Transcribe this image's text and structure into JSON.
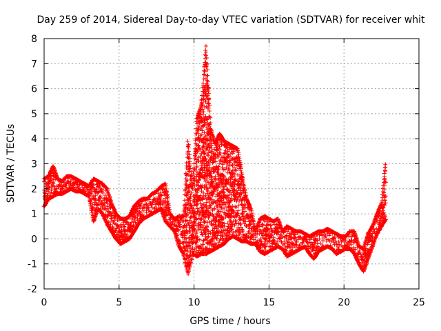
{
  "chart_data": {
    "type": "scatter",
    "title": "Day 259 of 2014, Sidereal Day-to-day VTEC variation (SDTVAR) for receiver whit",
    "xlabel": "GPS time / hours",
    "ylabel": "SDTVAR / TECUs",
    "xlim": [
      0,
      25
    ],
    "ylim": [
      -2,
      8
    ],
    "xticks": [
      0,
      5,
      10,
      15,
      20,
      25
    ],
    "yticks": [
      -2,
      -1,
      0,
      1,
      2,
      3,
      4,
      5,
      6,
      7,
      8
    ],
    "xtick_labels": [
      "0",
      "5",
      "10",
      "15",
      "20",
      "25"
    ],
    "ytick_labels": [
      "-2",
      "-1",
      "0",
      "1",
      "2",
      "3",
      "4",
      "5",
      "6",
      "7",
      "8"
    ],
    "grid": true,
    "marker": "+",
    "color": "#ff0000",
    "series": [
      {
        "name": "SDTVAR",
        "envelope": [
          [
            0.0,
            1.3,
            2.4
          ],
          [
            0.3,
            1.6,
            2.5
          ],
          [
            0.6,
            1.7,
            2.9
          ],
          [
            0.9,
            1.8,
            2.4
          ],
          [
            1.2,
            1.8,
            2.3
          ],
          [
            1.5,
            1.9,
            2.5
          ],
          [
            1.8,
            2.0,
            2.5
          ],
          [
            2.1,
            1.9,
            2.4
          ],
          [
            2.4,
            1.9,
            2.3
          ],
          [
            2.7,
            1.8,
            2.2
          ],
          [
            3.0,
            1.7,
            2.1
          ],
          [
            3.3,
            0.7,
            2.4
          ],
          [
            3.6,
            1.2,
            2.3
          ],
          [
            3.9,
            1.0,
            2.2
          ],
          [
            4.2,
            0.6,
            2.0
          ],
          [
            4.5,
            0.3,
            1.4
          ],
          [
            4.8,
            0.0,
            1.0
          ],
          [
            5.1,
            -0.2,
            0.8
          ],
          [
            5.4,
            -0.1,
            0.8
          ],
          [
            5.7,
            0.0,
            0.9
          ],
          [
            6.0,
            0.3,
            1.3
          ],
          [
            6.3,
            0.6,
            1.5
          ],
          [
            6.6,
            0.8,
            1.6
          ],
          [
            6.9,
            0.9,
            1.6
          ],
          [
            7.2,
            1.0,
            1.8
          ],
          [
            7.5,
            1.1,
            1.9
          ],
          [
            7.8,
            1.2,
            2.1
          ],
          [
            8.1,
            0.7,
            2.2
          ],
          [
            8.4,
            0.5,
            1.0
          ],
          [
            8.7,
            0.3,
            0.8
          ],
          [
            9.0,
            -0.3,
            0.9
          ],
          [
            9.3,
            -0.6,
            0.9
          ],
          [
            9.6,
            -1.4,
            3.9
          ],
          [
            9.9,
            -0.6,
            2.0
          ],
          [
            10.2,
            -0.7,
            4.8
          ],
          [
            10.5,
            -0.6,
            5.4
          ],
          [
            10.8,
            -0.6,
            7.7
          ],
          [
            11.1,
            -0.5,
            4.4
          ],
          [
            11.4,
            -0.4,
            3.8
          ],
          [
            11.7,
            -0.3,
            4.2
          ],
          [
            12.0,
            -0.2,
            3.9
          ],
          [
            12.3,
            0.0,
            3.8
          ],
          [
            12.6,
            0.1,
            3.7
          ],
          [
            12.9,
            0.0,
            3.6
          ],
          [
            13.2,
            -0.1,
            2.5
          ],
          [
            13.5,
            -0.1,
            1.6
          ],
          [
            13.8,
            -0.2,
            1.2
          ],
          [
            14.1,
            -0.2,
            0.3
          ],
          [
            14.4,
            -0.5,
            0.8
          ],
          [
            14.7,
            -0.6,
            0.9
          ],
          [
            15.0,
            -0.5,
            0.8
          ],
          [
            15.3,
            -0.4,
            0.7
          ],
          [
            15.6,
            -0.3,
            0.8
          ],
          [
            15.9,
            -0.4,
            0.3
          ],
          [
            16.2,
            -0.7,
            0.5
          ],
          [
            16.5,
            -0.6,
            0.4
          ],
          [
            16.8,
            -0.5,
            0.3
          ],
          [
            17.1,
            -0.4,
            0.3
          ],
          [
            17.4,
            -0.3,
            0.2
          ],
          [
            17.7,
            -0.6,
            0.1
          ],
          [
            18.0,
            -0.8,
            0.2
          ],
          [
            18.3,
            -0.5,
            0.3
          ],
          [
            18.6,
            -0.4,
            0.3
          ],
          [
            18.9,
            -0.3,
            0.4
          ],
          [
            19.2,
            -0.4,
            0.3
          ],
          [
            19.5,
            -0.6,
            0.2
          ],
          [
            19.8,
            -0.5,
            0.1
          ],
          [
            20.1,
            -0.4,
            0.1
          ],
          [
            20.4,
            -0.4,
            0.3
          ],
          [
            20.7,
            -0.6,
            0.3
          ],
          [
            21.0,
            -1.0,
            -0.3
          ],
          [
            21.3,
            -1.3,
            -0.4
          ],
          [
            21.6,
            -0.8,
            0.2
          ],
          [
            21.9,
            -0.3,
            0.5
          ],
          [
            22.2,
            0.2,
            1.0
          ],
          [
            22.5,
            0.5,
            1.4
          ],
          [
            22.8,
            0.8,
            3.1
          ]
        ]
      }
    ]
  }
}
